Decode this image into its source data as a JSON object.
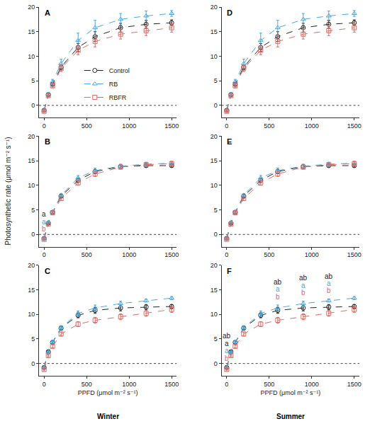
{
  "figure": {
    "y_label": "Photosynthetic rate (μmol m⁻² s⁻¹)",
    "x_label": "PPFD (μmol m⁻² s⁻¹)",
    "column_labels": [
      "Winter",
      "Summer"
    ]
  },
  "chart_data": [
    {
      "type": "line",
      "title": "A",
      "legend": "right",
      "hline": 0,
      "x": [
        0,
        50,
        100,
        200,
        400,
        600,
        900,
        1200,
        1500
      ],
      "xlim": [
        -60,
        1560
      ],
      "xticks": [
        0,
        500,
        1000,
        1500
      ],
      "ylim": [
        -2.5,
        20
      ],
      "yticks": [
        0,
        5,
        10,
        15,
        20
      ],
      "series": [
        {
          "name": "Control",
          "color": "#222222",
          "marker": "circle-open",
          "line_style": "dash",
          "values": [
            -1.0,
            2.2,
            4.3,
            7.8,
            11.8,
            14.0,
            15.8,
            16.5,
            16.8
          ],
          "error": [
            0.2,
            0.2,
            0.3,
            0.5,
            0.8,
            1.0,
            0.9,
            0.8,
            0.6
          ]
        },
        {
          "name": "RB",
          "color": "#4aa8e0",
          "marker": "triangle-up-open",
          "line_style": "dash",
          "values": [
            -1.0,
            2.3,
            4.8,
            8.5,
            13.2,
            15.8,
            17.5,
            18.2,
            18.7
          ],
          "error": [
            0.2,
            0.3,
            0.5,
            0.9,
            1.5,
            1.5,
            1.2,
            1.0,
            0.6
          ]
        },
        {
          "name": "RBFR",
          "color": "#e06a62",
          "marker": "square-open",
          "line_style": "dash",
          "values": [
            -1.2,
            2.0,
            4.0,
            7.5,
            11.2,
            13.0,
            14.5,
            15.2,
            15.8
          ],
          "error": [
            0.2,
            0.3,
            0.4,
            0.6,
            0.9,
            1.1,
            1.0,
            1.0,
            0.9
          ]
        }
      ],
      "letters": []
    },
    {
      "type": "line",
      "title": "B",
      "hline": 0,
      "x": [
        0,
        50,
        100,
        200,
        400,
        600,
        900,
        1200,
        1500
      ],
      "xlim": [
        -60,
        1560
      ],
      "xticks": [
        0,
        500,
        1000,
        1500
      ],
      "ylim": [
        -2.5,
        20
      ],
      "yticks": [
        0,
        5,
        10,
        15,
        20
      ],
      "series": [
        {
          "name": "Control",
          "color": "#222222",
          "marker": "circle-open",
          "line_style": "dash",
          "values": [
            -0.8,
            2.3,
            4.5,
            7.8,
            11.0,
            12.8,
            13.8,
            14.0,
            14.0
          ],
          "error": [
            0.2,
            0.2,
            0.2,
            0.3,
            0.4,
            0.4,
            0.3,
            0.3,
            0.3
          ]
        },
        {
          "name": "RB",
          "color": "#4aa8e0",
          "marker": "triangle-up-open",
          "line_style": "dash",
          "values": [
            -0.8,
            2.5,
            4.6,
            8.0,
            11.5,
            13.0,
            13.9,
            14.3,
            14.5
          ],
          "error": [
            0.2,
            0.2,
            0.3,
            0.3,
            0.5,
            0.5,
            0.4,
            0.4,
            0.4
          ]
        },
        {
          "name": "RBFR",
          "color": "#e06a62",
          "marker": "square-open",
          "line_style": "dash",
          "values": [
            -1.0,
            2.1,
            4.4,
            7.3,
            10.5,
            12.3,
            13.7,
            14.2,
            14.4
          ],
          "error": [
            0.2,
            0.2,
            0.3,
            0.4,
            0.5,
            0.5,
            0.4,
            0.4,
            0.4
          ]
        }
      ],
      "letters": [
        {
          "x": 0,
          "marks": [
            {
              "text": "a",
              "series": "Control"
            },
            {
              "text": "a",
              "series": "RB"
            },
            {
              "text": "b",
              "series": "RBFR"
            }
          ]
        }
      ]
    },
    {
      "type": "line",
      "title": "C",
      "hline": 0,
      "x": [
        0,
        50,
        100,
        200,
        400,
        600,
        900,
        1200,
        1500
      ],
      "xlim": [
        -60,
        1560
      ],
      "xticks": [
        0,
        500,
        1000,
        1500
      ],
      "ylim": [
        -2.5,
        20
      ],
      "yticks": [
        0,
        5,
        10,
        15,
        20
      ],
      "series": [
        {
          "name": "Control",
          "color": "#222222",
          "marker": "circle-open",
          "line_style": "dash",
          "values": [
            -0.8,
            2.4,
            4.3,
            7.2,
            9.8,
            10.8,
            11.3,
            11.5,
            11.6
          ],
          "error": [
            0.2,
            0.2,
            0.3,
            0.4,
            0.5,
            0.6,
            0.6,
            0.5,
            0.4
          ]
        },
        {
          "name": "RB",
          "color": "#4aa8e0",
          "marker": "triangle-up-open",
          "line_style": "dash",
          "values": [
            -0.8,
            2.3,
            4.4,
            7.3,
            10.2,
            11.3,
            12.2,
            12.8,
            13.3
          ],
          "error": [
            0.2,
            0.2,
            0.3,
            0.4,
            0.5,
            0.6,
            0.5,
            0.3,
            0.3
          ]
        },
        {
          "name": "RBFR",
          "color": "#e06a62",
          "marker": "square-open",
          "line_style": "dash",
          "values": [
            -1.2,
            1.6,
            3.5,
            6.0,
            8.0,
            8.8,
            9.5,
            10.2,
            11.0
          ],
          "error": [
            0.3,
            0.2,
            0.3,
            0.4,
            0.5,
            0.6,
            0.6,
            0.6,
            0.6
          ]
        }
      ],
      "letters": []
    },
    {
      "type": "line",
      "title": "D",
      "hline": 0,
      "x": [
        0,
        50,
        100,
        200,
        400,
        600,
        900,
        1200,
        1500
      ],
      "xlim": [
        -60,
        1560
      ],
      "xticks": [
        0,
        500,
        1000,
        1500
      ],
      "ylim": [
        -2.5,
        20
      ],
      "yticks": [
        0,
        5,
        10,
        15,
        20
      ],
      "series": [
        {
          "name": "Control",
          "color": "#222222",
          "marker": "circle-open",
          "line_style": "dash",
          "values": [
            -1.0,
            2.2,
            4.3,
            7.8,
            11.8,
            14.0,
            15.8,
            16.5,
            16.8
          ],
          "error": [
            0.2,
            0.2,
            0.3,
            0.5,
            0.8,
            1.0,
            0.9,
            0.8,
            0.6
          ]
        },
        {
          "name": "RB",
          "color": "#4aa8e0",
          "marker": "triangle-up-open",
          "line_style": "dash",
          "values": [
            -1.0,
            2.3,
            4.8,
            8.5,
            13.2,
            15.8,
            17.5,
            18.2,
            18.7
          ],
          "error": [
            0.2,
            0.3,
            0.5,
            0.9,
            1.5,
            1.5,
            1.2,
            1.0,
            0.6
          ]
        },
        {
          "name": "RBFR",
          "color": "#e06a62",
          "marker": "square-open",
          "line_style": "dash",
          "values": [
            -1.2,
            2.0,
            4.0,
            7.5,
            11.2,
            13.0,
            14.5,
            15.2,
            15.8
          ],
          "error": [
            0.2,
            0.3,
            0.4,
            0.6,
            0.9,
            1.1,
            1.0,
            1.0,
            0.9
          ]
        }
      ],
      "letters": []
    },
    {
      "type": "line",
      "title": "E",
      "hline": 0,
      "x": [
        0,
        50,
        100,
        200,
        400,
        600,
        900,
        1200,
        1500
      ],
      "xlim": [
        -60,
        1560
      ],
      "xticks": [
        0,
        500,
        1000,
        1500
      ],
      "ylim": [
        -2.5,
        20
      ],
      "yticks": [
        0,
        5,
        10,
        15,
        20
      ],
      "series": [
        {
          "name": "Control",
          "color": "#222222",
          "marker": "circle-open",
          "line_style": "dash",
          "values": [
            -0.8,
            2.3,
            4.5,
            7.8,
            11.0,
            12.8,
            13.8,
            14.0,
            14.0
          ],
          "error": [
            0.2,
            0.2,
            0.2,
            0.3,
            0.4,
            0.4,
            0.3,
            0.3,
            0.3
          ]
        },
        {
          "name": "RB",
          "color": "#4aa8e0",
          "marker": "triangle-up-open",
          "line_style": "dash",
          "values": [
            -0.8,
            2.5,
            4.6,
            8.0,
            11.5,
            13.0,
            13.9,
            14.3,
            14.5
          ],
          "error": [
            0.2,
            0.2,
            0.3,
            0.3,
            0.5,
            0.5,
            0.4,
            0.4,
            0.4
          ]
        },
        {
          "name": "RBFR",
          "color": "#e06a62",
          "marker": "square-open",
          "line_style": "dash",
          "values": [
            -1.0,
            2.1,
            4.4,
            7.3,
            10.5,
            12.3,
            13.7,
            14.2,
            14.4
          ],
          "error": [
            0.2,
            0.2,
            0.3,
            0.4,
            0.5,
            0.5,
            0.4,
            0.4,
            0.4
          ]
        }
      ],
      "letters": []
    },
    {
      "type": "line",
      "title": "F",
      "hline": 0,
      "x": [
        0,
        50,
        100,
        200,
        400,
        600,
        900,
        1200,
        1500
      ],
      "xlim": [
        -60,
        1560
      ],
      "xticks": [
        0,
        500,
        1000,
        1500
      ],
      "ylim": [
        -2.5,
        20
      ],
      "yticks": [
        0,
        5,
        10,
        15,
        20
      ],
      "series": [
        {
          "name": "Control",
          "color": "#222222",
          "marker": "circle-open",
          "line_style": "dash",
          "values": [
            -0.8,
            2.4,
            4.3,
            7.2,
            9.8,
            10.8,
            11.3,
            11.5,
            11.6
          ],
          "error": [
            0.2,
            0.2,
            0.3,
            0.4,
            0.5,
            0.6,
            0.6,
            0.5,
            0.4
          ]
        },
        {
          "name": "RB",
          "color": "#4aa8e0",
          "marker": "triangle-up-open",
          "line_style": "dash",
          "values": [
            -0.8,
            2.3,
            4.4,
            7.3,
            10.2,
            11.3,
            12.2,
            12.8,
            13.3
          ],
          "error": [
            0.2,
            0.2,
            0.3,
            0.4,
            0.5,
            0.6,
            0.5,
            0.3,
            0.3
          ]
        },
        {
          "name": "RBFR",
          "color": "#e06a62",
          "marker": "square-open",
          "line_style": "dash",
          "values": [
            -1.2,
            1.6,
            3.5,
            6.0,
            8.0,
            8.8,
            9.5,
            10.2,
            11.0
          ],
          "error": [
            0.3,
            0.2,
            0.3,
            0.4,
            0.5,
            0.6,
            0.6,
            0.6,
            0.6
          ]
        }
      ],
      "letters": [
        {
          "x": 0,
          "marks": [
            {
              "text": "ab",
              "series": "Control"
            },
            {
              "text": "a",
              "series": "Control"
            },
            {
              "text": "a",
              "series": "RB"
            },
            {
              "text": "b",
              "series": "RBFR"
            }
          ]
        },
        {
          "x": 600,
          "marks": [
            {
              "text": "ab",
              "series": "Control"
            },
            {
              "text": "a",
              "series": "RB"
            },
            {
              "text": "b",
              "series": "RBFR"
            }
          ]
        },
        {
          "x": 900,
          "marks": [
            {
              "text": "ab",
              "series": "Control"
            },
            {
              "text": "a",
              "series": "RB"
            },
            {
              "text": "b",
              "series": "RBFR"
            }
          ]
        },
        {
          "x": 1200,
          "marks": [
            {
              "text": "ab",
              "series": "Control"
            },
            {
              "text": "a",
              "series": "RB"
            },
            {
              "text": "b",
              "series": "RBFR"
            }
          ]
        }
      ]
    }
  ]
}
